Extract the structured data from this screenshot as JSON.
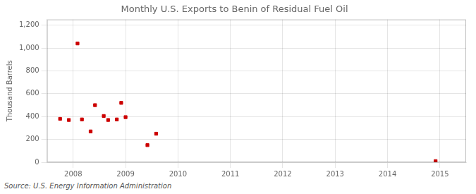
{
  "chart_data": {
    "type": "scatter",
    "title": "Monthly U.S. Exports to Benin of Residual Fuel Oil",
    "ylabel": "Thousand Barrels",
    "annotations": [
      "Source: U.S. Energy Information Administration"
    ],
    "x": [
      2007.75,
      2007.917,
      2008.083,
      2008.167,
      2008.333,
      2008.417,
      2008.583,
      2008.667,
      2008.833,
      2008.917,
      2009.0,
      2009.417,
      2009.583,
      2014.917
    ],
    "values": [
      380,
      370,
      1040,
      375,
      270,
      500,
      405,
      370,
      375,
      520,
      395,
      150,
      250,
      10
    ],
    "color": "#cc0000",
    "marker": "square",
    "xlim": [
      2007.5,
      2015.5
    ],
    "xticks": [
      2008,
      2009,
      2010,
      2011,
      2012,
      2013,
      2014,
      2015
    ],
    "ylim": [
      0,
      1250
    ],
    "yticks": [
      0,
      200,
      400,
      600,
      800,
      {
        "value": 1000,
        "label": "1,000"
      },
      {
        "value": 1200,
        "label": "1,200"
      }
    ],
    "grid": true
  }
}
